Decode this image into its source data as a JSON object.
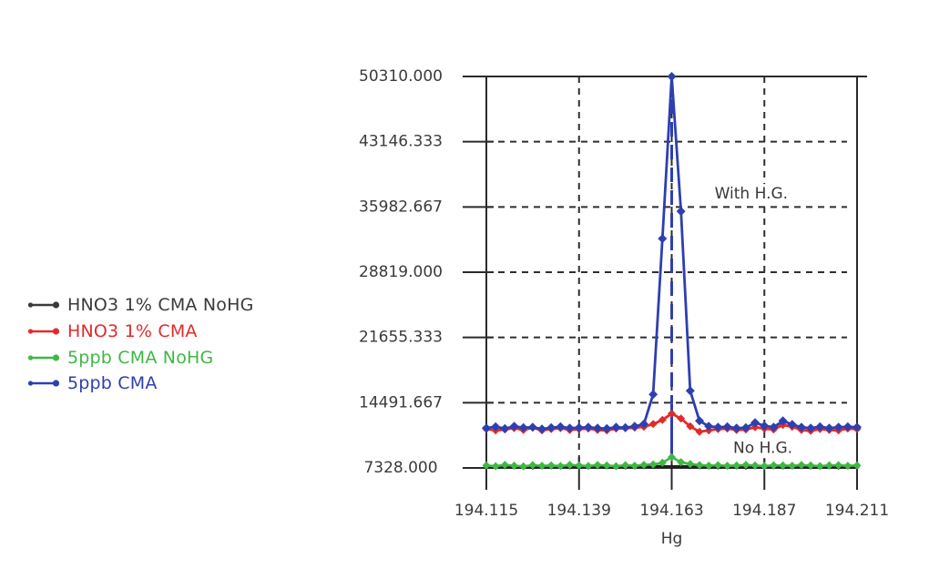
{
  "figure": {
    "background_color": "#ffffff",
    "frame_color": "#2a2a2a",
    "grid_color": "#2e2e2e",
    "text_color": "#3b3b3b"
  },
  "legend": {
    "items": [
      {
        "label": "HNO3 1% CMA NoHG",
        "color": "#3a3a3a"
      },
      {
        "label": "HNO3 1% CMA",
        "color": "#e12b2b"
      },
      {
        "label": "5ppb CMA NoHG",
        "color": "#3fb844"
      },
      {
        "label": "5ppb CMA",
        "color": "#2e3fb0"
      }
    ]
  },
  "chart_data": {
    "type": "line",
    "title": "",
    "xlabel": "Hg",
    "ylabel": "",
    "xlim": [
      194.115,
      194.211
    ],
    "ylim": [
      7328.0,
      50310.0
    ],
    "legend_position": "left-middle",
    "x_ticks": [
      {
        "value": 194.115,
        "label": "194.115"
      },
      {
        "value": 194.139,
        "label": "194.139"
      },
      {
        "value": 194.163,
        "label": "194.163"
      },
      {
        "value": 194.187,
        "label": "194.187"
      },
      {
        "value": 194.211,
        "label": "194.211"
      }
    ],
    "y_ticks": [
      {
        "value": 7328.0,
        "label": "7328.000"
      },
      {
        "value": 14491.667,
        "label": "14491.667"
      },
      {
        "value": 21655.333,
        "label": "21655.333"
      },
      {
        "value": 28819.0,
        "label": "28819.000"
      },
      {
        "value": 35982.667,
        "label": "35982.667"
      },
      {
        "value": 43146.333,
        "label": "43146.333"
      },
      {
        "value": 50310.0,
        "label": "50310.000"
      }
    ],
    "grid": {
      "style": "dashed",
      "x_values": [
        194.139,
        194.163,
        194.187
      ],
      "y_values": [
        14491.667,
        21655.333,
        28819.0,
        35982.667,
        43146.333
      ]
    },
    "peak_line": {
      "x": 194.163,
      "dash_from": 50310,
      "dash_to": 14400,
      "solid_from": 14400,
      "solid_to": 8200,
      "color": "#2e3fb0"
    },
    "annotations": [
      {
        "text": "With H.G.",
        "x": 194.1836,
        "y": 37400
      },
      {
        "text": "No H.G.",
        "x": 194.1866,
        "y": 9500
      }
    ],
    "x": [
      194.115,
      194.1174,
      194.1198,
      194.1222,
      194.1246,
      194.127,
      194.1294,
      194.1318,
      194.1342,
      194.1366,
      194.139,
      194.1414,
      194.1438,
      194.1462,
      194.1486,
      194.151,
      194.1534,
      194.1558,
      194.1582,
      194.1606,
      194.163,
      194.1654,
      194.1678,
      194.1702,
      194.1726,
      194.175,
      194.1774,
      194.1798,
      194.1822,
      194.1846,
      194.187,
      194.1894,
      194.1918,
      194.1942,
      194.1966,
      194.199,
      194.2014,
      194.2038,
      194.2062,
      194.2086,
      194.211
    ],
    "series": [
      {
        "name": "HNO3 1% CMA NoHG",
        "color": "#1f1f1f",
        "marker_size": 3,
        "line_width": 3,
        "values": [
          7440,
          7410,
          7470,
          7430,
          7450,
          7420,
          7460,
          7440,
          7430,
          7450,
          7440,
          7420,
          7460,
          7440,
          7450,
          7430,
          7450,
          7460,
          7490,
          7510,
          7470,
          7500,
          7480,
          7450,
          7440,
          7430,
          7450,
          7440,
          7420,
          7460,
          7440,
          7450,
          7430,
          7440,
          7460,
          7430,
          7440,
          7450,
          7420,
          7440,
          7430
        ]
      },
      {
        "name": "5ppb CMA NoHG",
        "color": "#3fb844",
        "marker_size": 4.5,
        "line_width": 2.6,
        "values": [
          7600,
          7520,
          7660,
          7580,
          7500,
          7640,
          7560,
          7600,
          7540,
          7660,
          7600,
          7540,
          7650,
          7600,
          7520,
          7630,
          7570,
          7660,
          7720,
          7900,
          8520,
          7960,
          7760,
          7640,
          7580,
          7630,
          7560,
          7600,
          7660,
          7600,
          7540,
          7620,
          7600,
          7570,
          7650,
          7600,
          7530,
          7610,
          7630,
          7560,
          7600
        ]
      },
      {
        "name": "HNO3 1% CMA",
        "color": "#e12b2b",
        "marker_size": 4.5,
        "line_width": 2.8,
        "values": [
          11600,
          11450,
          11550,
          11700,
          11500,
          11750,
          11450,
          11600,
          11700,
          11500,
          11600,
          11650,
          11500,
          11450,
          11650,
          11700,
          11750,
          11850,
          12150,
          12600,
          13300,
          12750,
          11900,
          11300,
          11450,
          11600,
          11650,
          11500,
          11550,
          11800,
          11650,
          11550,
          12050,
          11850,
          11500,
          11400,
          11600,
          11500,
          11450,
          11650,
          11600
        ]
      },
      {
        "name": "5ppb CMA",
        "color": "#2e3fb0",
        "marker_size": 5,
        "line_width": 2.8,
        "values": [
          11700,
          11850,
          11650,
          11900,
          11750,
          11800,
          11600,
          11750,
          11850,
          11700,
          11750,
          11800,
          11700,
          11650,
          11800,
          11750,
          11900,
          12150,
          15400,
          32500,
          50310,
          35500,
          15800,
          12500,
          11900,
          11800,
          11850,
          11700,
          11750,
          12300,
          11950,
          11800,
          12500,
          12100,
          11800,
          11700,
          11850,
          11700,
          11800,
          11850,
          11800
        ]
      }
    ]
  }
}
